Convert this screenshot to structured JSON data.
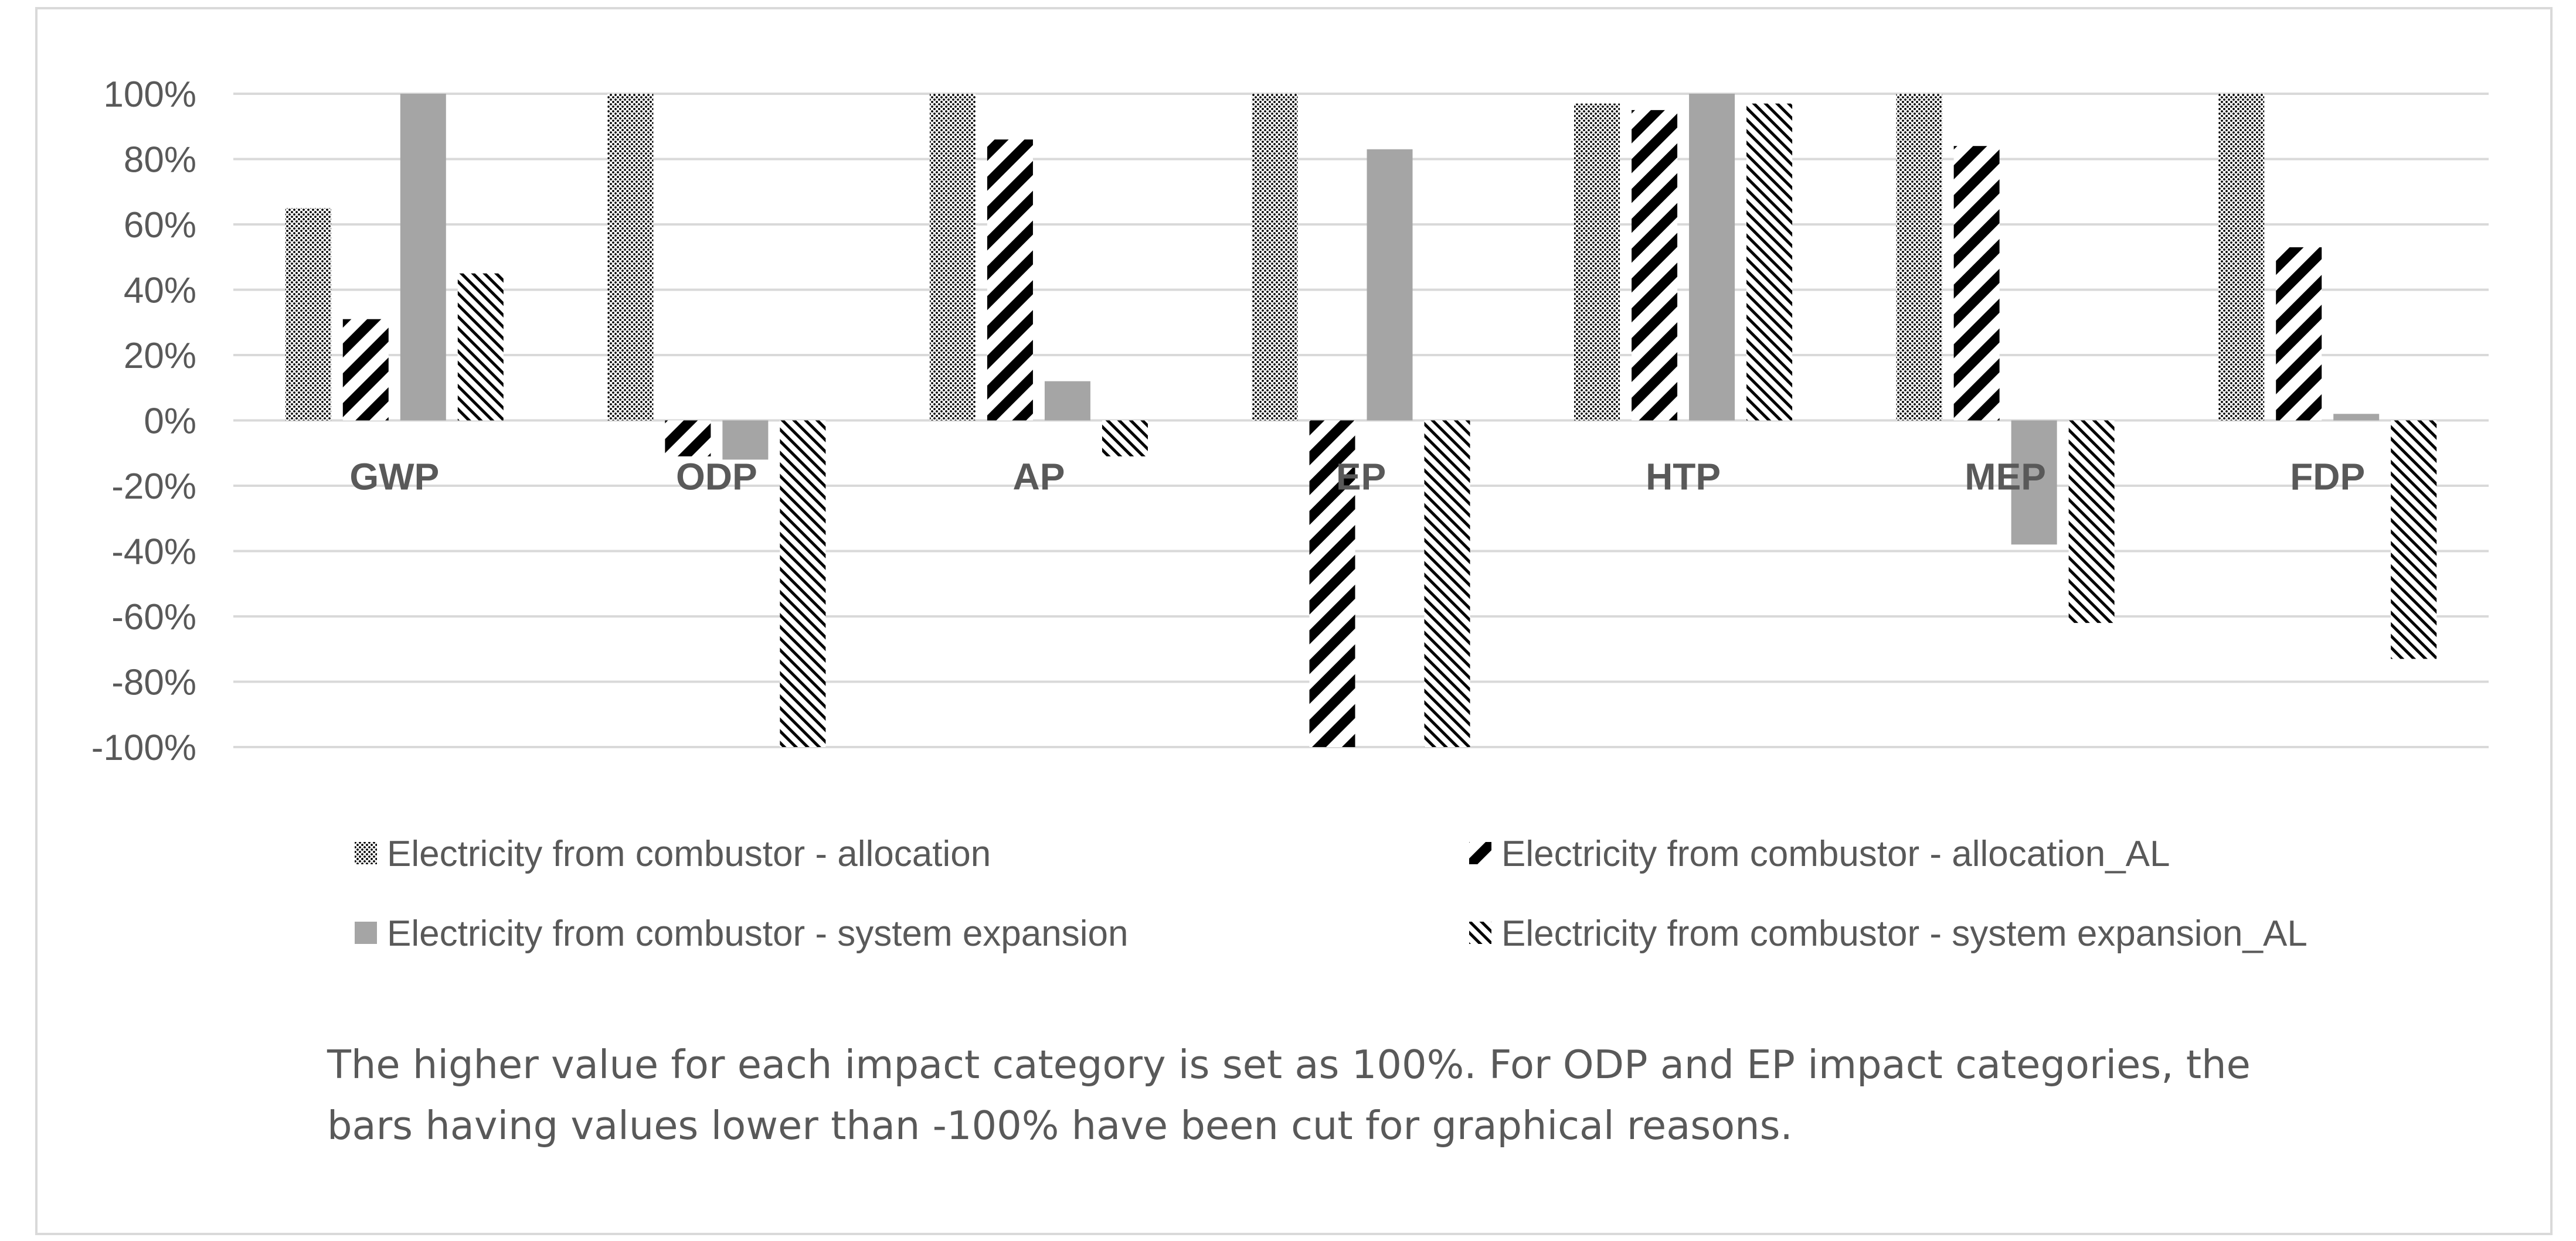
{
  "chart_data": {
    "type": "bar",
    "title": "",
    "xlabel": "",
    "ylabel": "",
    "categories": [
      "GWP",
      "ODP",
      "AP",
      "EP",
      "HTP",
      "MEP",
      "FDP"
    ],
    "series": [
      {
        "name": "Electricity from combustor - allocation",
        "pattern": "dots",
        "values": [
          65,
          100,
          100,
          100,
          97,
          100,
          100
        ]
      },
      {
        "name": "Electricity from combustor - allocation_AL",
        "pattern": "wide-diagonal",
        "values": [
          31,
          -11,
          86,
          -100,
          95,
          84,
          53
        ]
      },
      {
        "name": "Electricity from combustor - system expansion",
        "pattern": "solid",
        "values": [
          100,
          -12,
          12,
          83,
          100,
          -38,
          2
        ]
      },
      {
        "name": "Electricity from combustor - system expansion_AL",
        "pattern": "narrow-diagonal",
        "values": [
          45,
          -100,
          -11,
          -100,
          97,
          -62,
          -73
        ]
      }
    ],
    "ylim": [
      -100,
      100
    ],
    "yticks": [
      "100%",
      "80%",
      "60%",
      "40%",
      "20%",
      "0%",
      "-20%",
      "-40%",
      "-60%",
      "-80%",
      "-100%"
    ],
    "ytick_values": [
      100,
      80,
      60,
      40,
      20,
      0,
      -20,
      -40,
      -60,
      -80,
      -100
    ],
    "grid": true,
    "legend_position": "bottom"
  },
  "caption": {
    "line1": "The higher value for each impact category is set as 100%. For ODP and EP impact categories, the",
    "line2": "bars having values lower than -100% have been cut for graphical reasons."
  },
  "colors": {
    "grid": "#d9d9d9",
    "text": "#595959",
    "solid_bar": "#a5a5a5",
    "border": "#d9d9d9"
  }
}
